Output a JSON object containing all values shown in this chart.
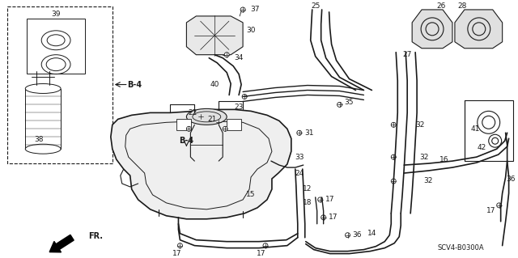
{
  "bg_color": "#ffffff",
  "fig_width": 6.4,
  "fig_height": 3.19,
  "diagram_code": "SCV4-B0300A",
  "line_color": "#1a1a1a",
  "label_color": "#000000",
  "font_size": 6.5
}
